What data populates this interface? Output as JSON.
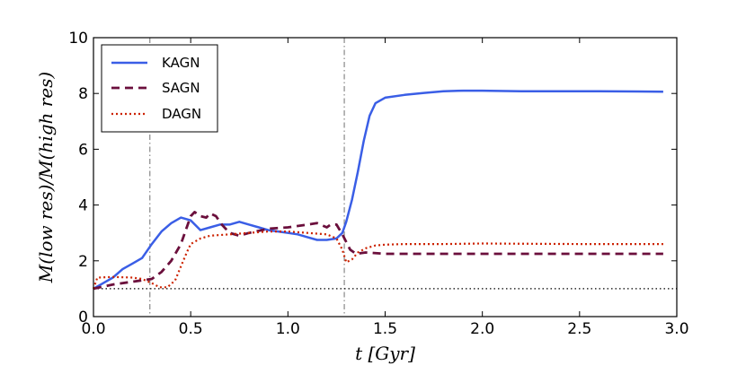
{
  "chart_data": {
    "type": "line",
    "title": "",
    "xlabel": "t [Gyr]",
    "ylabel": "M(low res)/M(high res)",
    "xlim": [
      0,
      3.0
    ],
    "ylim": [
      0,
      10
    ],
    "xticks": [
      0.0,
      0.5,
      1.0,
      1.5,
      2.0,
      2.5,
      3.0
    ],
    "xtick_labels": [
      "0.0",
      "0.5",
      "1.0",
      "1.5",
      "2.0",
      "2.5",
      "3.0"
    ],
    "yticks": [
      0,
      2,
      4,
      6,
      8,
      10
    ],
    "ytick_labels": [
      "0",
      "2",
      "4",
      "6",
      "8",
      "10"
    ],
    "legend_position": "top-left",
    "vertical_lines": [
      0.29,
      1.29
    ],
    "horizontal_lines": [
      1.0
    ],
    "series": [
      {
        "name": "KAGN",
        "color": "#3a5ee6",
        "style": "solid",
        "x": [
          0.0,
          0.05,
          0.1,
          0.15,
          0.2,
          0.25,
          0.3,
          0.35,
          0.4,
          0.45,
          0.5,
          0.55,
          0.6,
          0.65,
          0.7,
          0.75,
          0.8,
          0.85,
          0.9,
          0.95,
          1.0,
          1.05,
          1.1,
          1.15,
          1.2,
          1.25,
          1.28,
          1.3,
          1.33,
          1.36,
          1.39,
          1.42,
          1.45,
          1.5,
          1.6,
          1.7,
          1.8,
          1.9,
          2.0,
          2.2,
          2.4,
          2.6,
          2.8,
          2.93
        ],
        "y": [
          1.0,
          1.2,
          1.4,
          1.7,
          1.9,
          2.1,
          2.6,
          3.05,
          3.35,
          3.55,
          3.45,
          3.1,
          3.2,
          3.3,
          3.3,
          3.4,
          3.3,
          3.2,
          3.1,
          3.05,
          3.0,
          2.95,
          2.85,
          2.75,
          2.75,
          2.8,
          3.0,
          3.4,
          4.2,
          5.2,
          6.3,
          7.2,
          7.65,
          7.85,
          7.95,
          8.02,
          8.08,
          8.1,
          8.1,
          8.08,
          8.08,
          8.08,
          8.07,
          8.06
        ]
      },
      {
        "name": "SAGN",
        "color": "#6b0f3c",
        "style": "dashed",
        "x": [
          0.0,
          0.1,
          0.2,
          0.3,
          0.35,
          0.4,
          0.45,
          0.48,
          0.5,
          0.52,
          0.55,
          0.58,
          0.6,
          0.63,
          0.66,
          0.7,
          0.75,
          0.8,
          0.9,
          1.0,
          1.1,
          1.15,
          1.2,
          1.22,
          1.25,
          1.28,
          1.32,
          1.35,
          1.4,
          1.5,
          2.0,
          2.5,
          2.93
        ],
        "y": [
          1.0,
          1.15,
          1.25,
          1.35,
          1.6,
          2.0,
          2.6,
          3.2,
          3.6,
          3.75,
          3.6,
          3.55,
          3.7,
          3.6,
          3.3,
          3.0,
          2.9,
          3.0,
          3.15,
          3.2,
          3.3,
          3.35,
          3.2,
          3.3,
          3.3,
          2.95,
          2.4,
          2.25,
          2.3,
          2.25,
          2.25,
          2.25,
          2.25
        ]
      },
      {
        "name": "DAGN",
        "color": "#cc2200",
        "style": "dotted",
        "x": [
          0.0,
          0.02,
          0.1,
          0.2,
          0.25,
          0.3,
          0.34,
          0.38,
          0.42,
          0.45,
          0.48,
          0.5,
          0.55,
          0.6,
          0.7,
          0.8,
          0.9,
          1.0,
          1.1,
          1.2,
          1.25,
          1.28,
          1.3,
          1.33,
          1.36,
          1.4,
          1.45,
          1.5,
          1.6,
          1.8,
          2.0,
          2.5,
          2.93
        ],
        "y": [
          1.0,
          1.4,
          1.42,
          1.4,
          1.35,
          1.2,
          1.05,
          1.05,
          1.3,
          1.8,
          2.3,
          2.6,
          2.8,
          2.9,
          2.95,
          3.0,
          3.05,
          3.05,
          3.0,
          2.95,
          2.8,
          2.4,
          1.95,
          2.05,
          2.3,
          2.45,
          2.55,
          2.58,
          2.6,
          2.6,
          2.62,
          2.6,
          2.6
        ]
      }
    ]
  }
}
